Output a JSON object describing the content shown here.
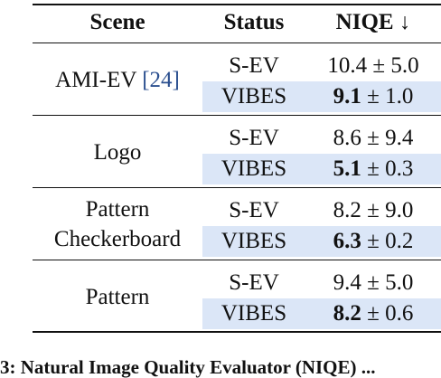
{
  "table": {
    "headers": {
      "scene": "Scene",
      "status": "Status",
      "niqe": "NIQE ↓"
    },
    "groups": [
      {
        "scene_lines": [
          "AMI-EV "
        ],
        "citation": "[24]",
        "rows": [
          {
            "status": "S-EV",
            "mean": "10.4",
            "pm": "± 5.0",
            "best": false
          },
          {
            "status": "VIBES",
            "mean": "9.1",
            "pm": "± 1.0",
            "best": true
          }
        ]
      },
      {
        "scene_lines": [
          "Logo"
        ],
        "rows": [
          {
            "status": "S-EV",
            "mean": "8.6",
            "pm": "± 9.4",
            "best": false
          },
          {
            "status": "VIBES",
            "mean": "5.1",
            "pm": "± 0.3",
            "best": true
          }
        ]
      },
      {
        "scene_lines": [
          "Pattern",
          "Checkerboard"
        ],
        "rows": [
          {
            "status": "S-EV",
            "mean": "8.2",
            "pm": "± 9.0",
            "best": false
          },
          {
            "status": "VIBES",
            "mean": "6.3",
            "pm": "± 0.2",
            "best": true
          }
        ]
      },
      {
        "scene_lines": [
          "Pattern"
        ],
        "rows": [
          {
            "status": "S-EV",
            "mean": "9.4",
            "pm": "± 5.0",
            "best": false
          },
          {
            "status": "VIBES",
            "mean": "8.2",
            "pm": "± 0.6",
            "best": true
          }
        ]
      }
    ]
  },
  "caption": "3: Natural Image Quality Evaluator (NIQE) ...",
  "colors": {
    "highlight_row": "#dbe6f7",
    "citation": "#2b4f8f"
  }
}
